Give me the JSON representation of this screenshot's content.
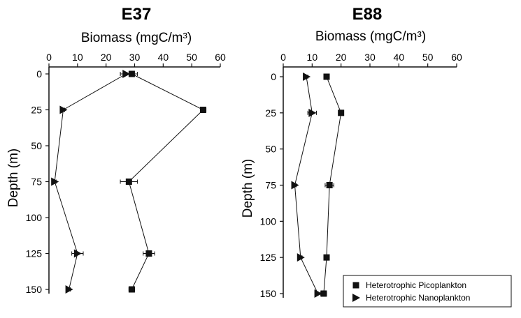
{
  "chart_data": [
    {
      "type": "line",
      "title": "E37",
      "xlabel": "Biomass (mgC/m³)",
      "ylabel": "Depth (m)",
      "xlim": [
        0,
        60
      ],
      "ylim": [
        0,
        150
      ],
      "y_reversed": true,
      "xticks": [
        0,
        10,
        20,
        30,
        40,
        50,
        60
      ],
      "yticks": [
        0,
        25,
        50,
        75,
        100,
        125,
        150
      ],
      "x_axis_position": "top",
      "grid": false,
      "series": [
        {
          "name": "Heterotrophic Picoplankton",
          "marker": "square",
          "points": [
            {
              "depth": 0,
              "value": 29
            },
            {
              "depth": 25,
              "value": 54
            },
            {
              "depth": 75,
              "value": 28
            },
            {
              "depth": 125,
              "value": 35
            },
            {
              "depth": 150,
              "value": 29
            }
          ],
          "error": [
            2,
            1,
            3,
            2,
            1
          ]
        },
        {
          "name": "Heterotrophic Nanoplankton",
          "marker": "triangle",
          "points": [
            {
              "depth": 0,
              "value": 27
            },
            {
              "depth": 25,
              "value": 5
            },
            {
              "depth": 75,
              "value": 2
            },
            {
              "depth": 125,
              "value": 10
            },
            {
              "depth": 150,
              "value": 7
            }
          ],
          "error": [
            2,
            0.5,
            0.5,
            2,
            0.5
          ]
        }
      ]
    },
    {
      "type": "line",
      "title": "E88",
      "xlabel": "Biomass (mgC/m³)",
      "ylabel": "Depth (m)",
      "xlim": [
        0,
        60
      ],
      "ylim": [
        0,
        150
      ],
      "y_reversed": true,
      "xticks": [
        0,
        10,
        20,
        30,
        40,
        50,
        60
      ],
      "yticks": [
        0,
        25,
        50,
        75,
        100,
        125,
        150
      ],
      "x_axis_position": "top",
      "grid": false,
      "legend": "bottom-right",
      "series": [
        {
          "name": "Heterotrophic Picoplankton",
          "marker": "square",
          "points": [
            {
              "depth": 0,
              "value": 15
            },
            {
              "depth": 25,
              "value": 20
            },
            {
              "depth": 75,
              "value": 16
            },
            {
              "depth": 125,
              "value": 15
            },
            {
              "depth": 150,
              "value": 14
            }
          ],
          "error": [
            0.5,
            0.5,
            1.5,
            0.5,
            1
          ]
        },
        {
          "name": "Heterotrophic Nanoplankton",
          "marker": "triangle",
          "points": [
            {
              "depth": 0,
              "value": 8
            },
            {
              "depth": 25,
              "value": 10
            },
            {
              "depth": 75,
              "value": 4
            },
            {
              "depth": 125,
              "value": 6
            },
            {
              "depth": 150,
              "value": 12
            }
          ],
          "error": [
            0.5,
            1.5,
            0.5,
            0.5,
            1
          ]
        }
      ]
    }
  ]
}
